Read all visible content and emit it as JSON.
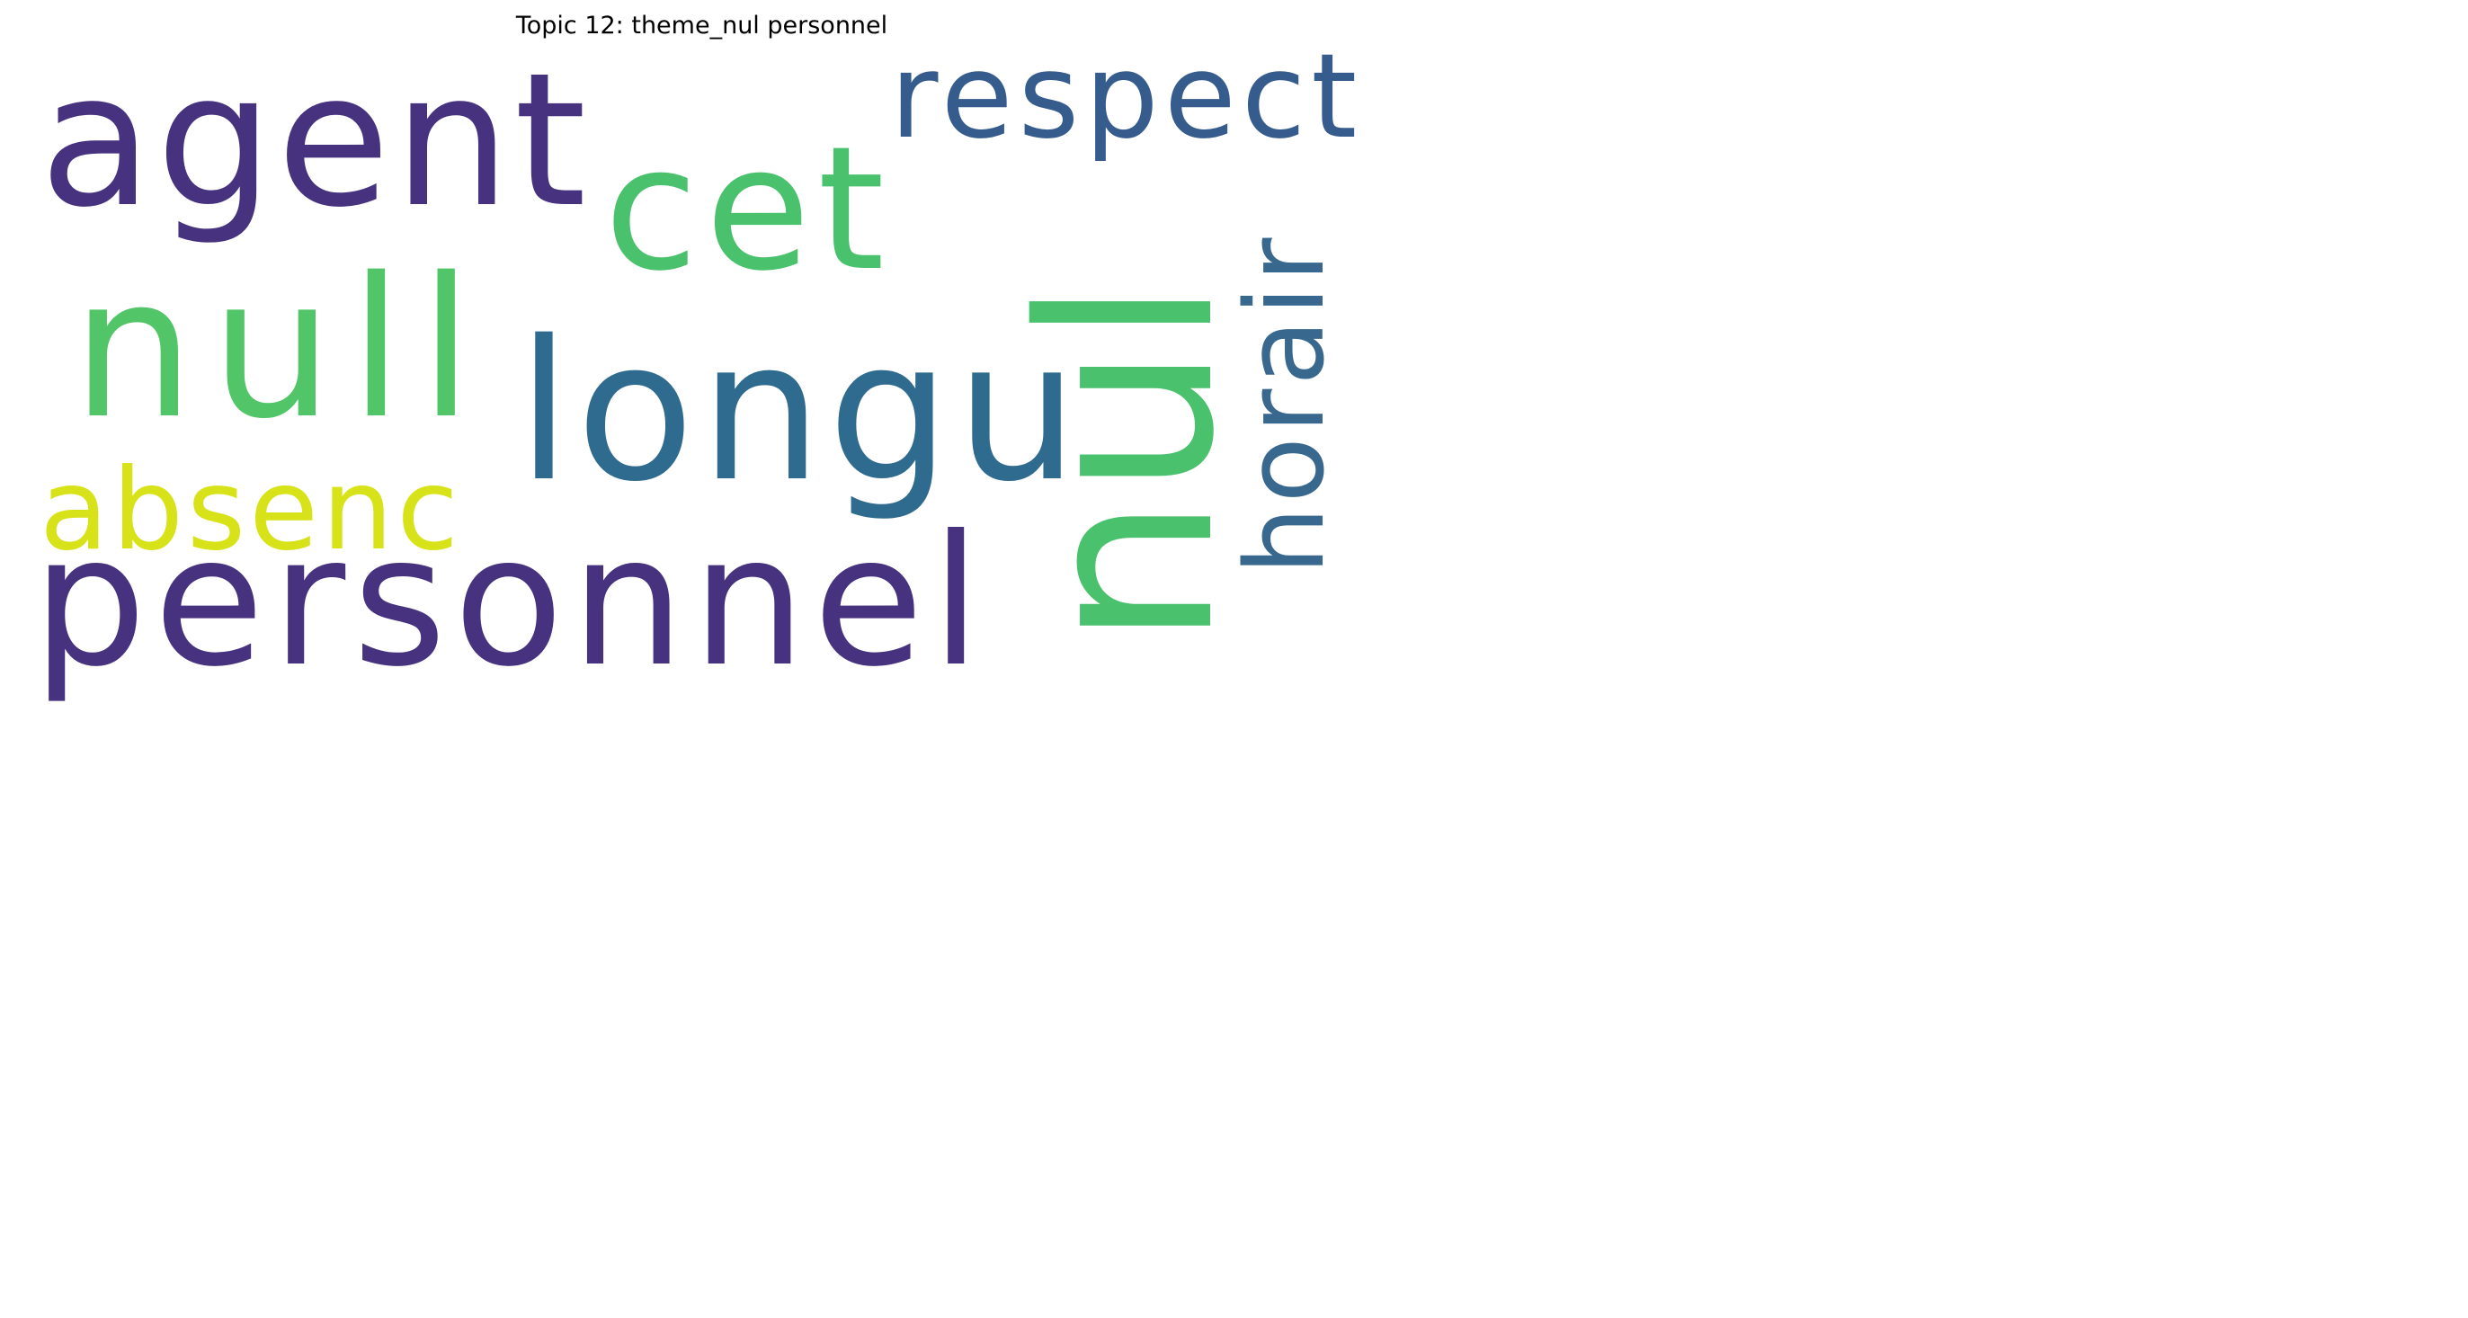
{
  "title": "Topic 12: theme_nul personnel",
  "words": [
    {
      "text": "agent",
      "color": "#46327e",
      "orientation": "horizontal"
    },
    {
      "text": "respect",
      "color": "#365c8d",
      "orientation": "horizontal"
    },
    {
      "text": "cet",
      "color": "#4ac16d",
      "orientation": "horizontal"
    },
    {
      "text": "null",
      "color": "#52c569",
      "orientation": "horizontal"
    },
    {
      "text": "longu",
      "color": "#2f6b8e",
      "orientation": "horizontal"
    },
    {
      "text": "absenc",
      "color": "#d8e219",
      "orientation": "horizontal"
    },
    {
      "text": "personnel",
      "color": "#46327e",
      "orientation": "horizontal"
    },
    {
      "text": "nul",
      "color": "#4ac16d",
      "orientation": "vertical"
    },
    {
      "text": "horair",
      "color": "#39688e",
      "orientation": "vertical"
    }
  ]
}
